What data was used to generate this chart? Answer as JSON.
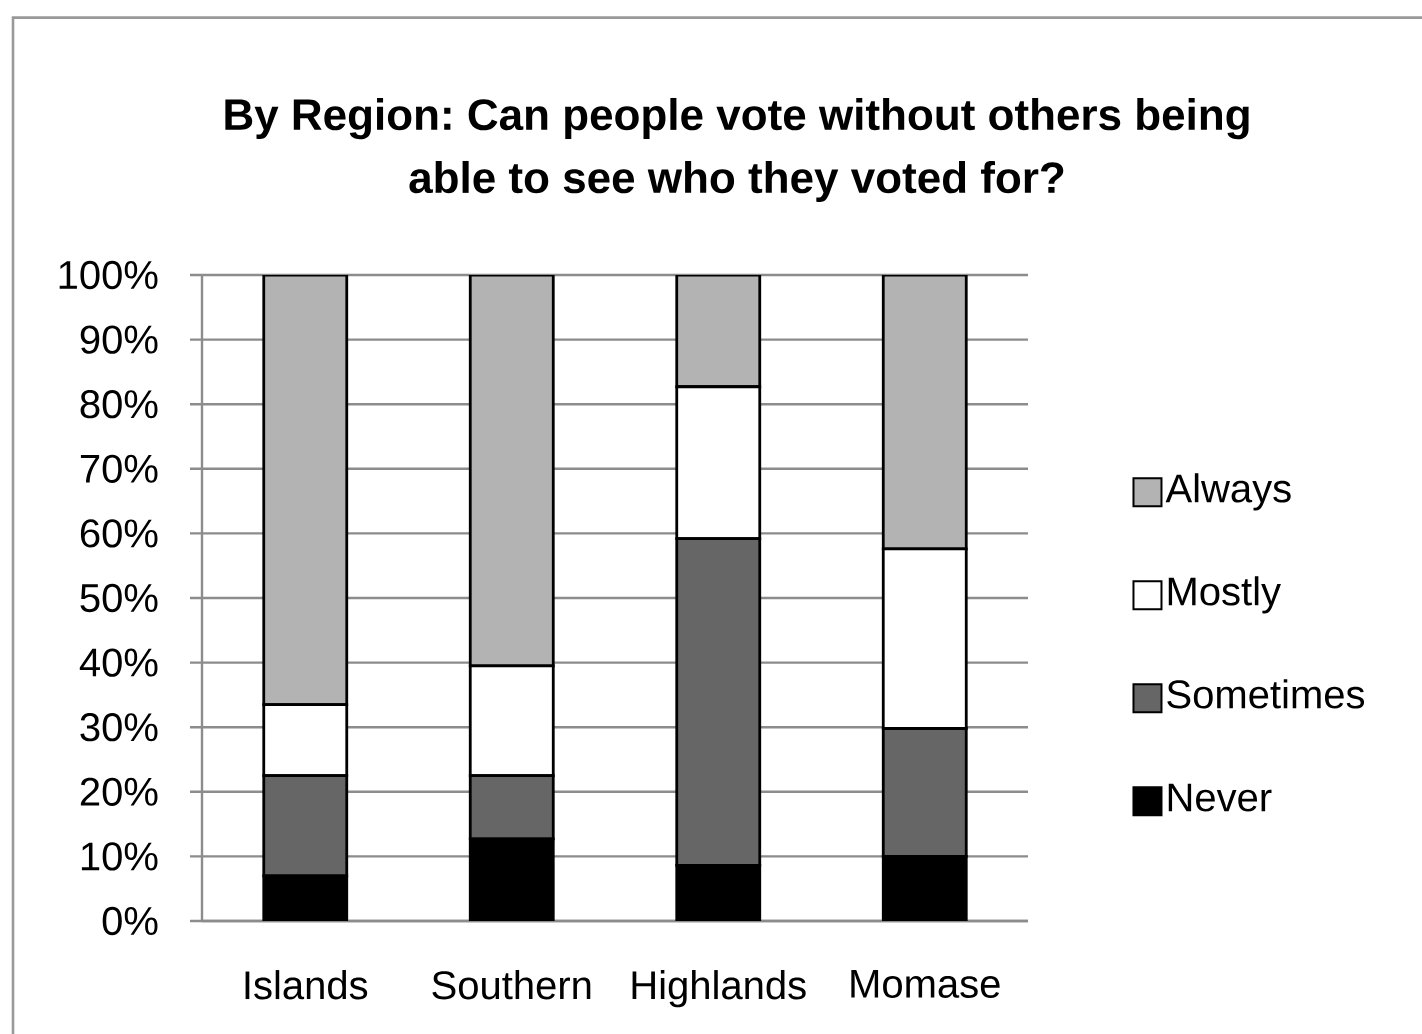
{
  "chart_data": {
    "type": "bar",
    "title": "By Region: Can people vote without others being able to see who they voted for?",
    "categories": [
      "Islands",
      "Southern",
      "Highlands",
      "Momase"
    ],
    "stacked": true,
    "series": [
      {
        "name": "Never",
        "color": "#000000",
        "values": [
          7,
          12.7,
          8.6,
          10
        ]
      },
      {
        "name": "Sometimes",
        "color": "#666666",
        "values": [
          15.5,
          9.8,
          50.6,
          19.8
        ]
      },
      {
        "name": "Mostly",
        "color": "#ffffff",
        "values": [
          11,
          17,
          23.5,
          27.8
        ]
      },
      {
        "name": "Always",
        "color": "#b3b3b3",
        "values": [
          66.5,
          60.5,
          17.3,
          42.4
        ]
      }
    ],
    "ylim": [
      0,
      100
    ],
    "yticks": [
      {
        "value": 0,
        "label": "0%"
      },
      {
        "value": 10,
        "label": "10%"
      },
      {
        "value": 20,
        "label": "20%"
      },
      {
        "value": 30,
        "label": "30%"
      },
      {
        "value": 40,
        "label": "40%"
      },
      {
        "value": 50,
        "label": "50%"
      },
      {
        "value": 60,
        "label": "60%"
      },
      {
        "value": 70,
        "label": "70%"
      },
      {
        "value": 80,
        "label": "80%"
      },
      {
        "value": 90,
        "label": "90%"
      },
      {
        "value": 100,
        "label": "100%"
      }
    ],
    "grid": "y",
    "legend": "right"
  }
}
